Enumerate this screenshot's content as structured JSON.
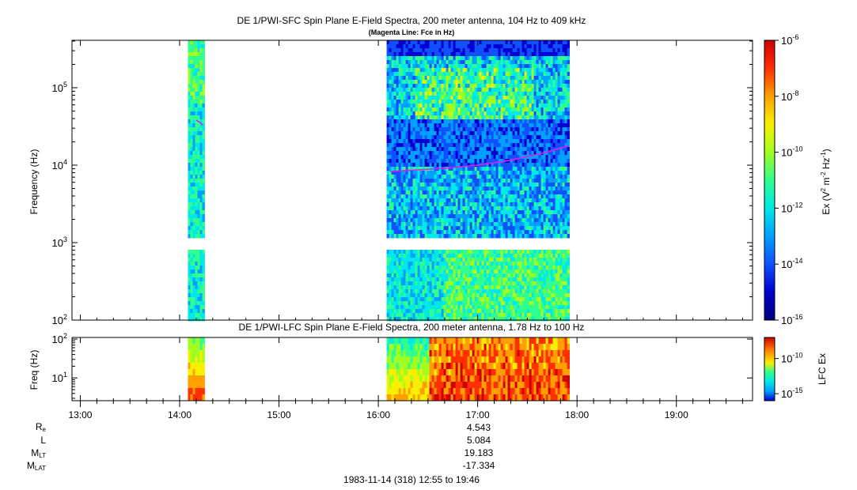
{
  "chart_data": [
    {
      "type": "heatmap",
      "title": "DE 1/PWI-SFC  Spin Plane E-Field Spectra, 200 meter antenna, 104 Hz to 409 kHz",
      "subtitle": "(Magenta Line: Fce in Hz)",
      "ylabel": "Frequency (Hz)",
      "yscale": "log",
      "ylim": [
        100,
        409000
      ],
      "yticks": [
        {
          "value": 100,
          "base": "10",
          "exp": "2"
        },
        {
          "value": 1000,
          "base": "10",
          "exp": "3"
        },
        {
          "value": 10000,
          "base": "10",
          "exp": "4"
        },
        {
          "value": 100000,
          "base": "10",
          "exp": "5"
        }
      ],
      "xlim": [
        "12:55",
        "19:46"
      ],
      "data_intervals": [
        [
          "14:05",
          "14:14"
        ],
        [
          "16:05",
          "17:55"
        ]
      ],
      "data_gap_frequency_hz": [
        900,
        1050
      ],
      "colorbar": {
        "label_prefix": "Ex (V",
        "label_sup1": "2",
        "label_mid": " m",
        "label_sup2": "-2",
        "label_hz": " Hz",
        "label_sup3": "-1",
        "label_suffix": ")",
        "scale": "log",
        "range": [
          1e-16,
          1e-06
        ],
        "ticks": [
          {
            "value": 1e-06,
            "base": "10",
            "exp": "-6"
          },
          {
            "value": 1e-08,
            "base": "10",
            "exp": "-8"
          },
          {
            "value": 1e-10,
            "base": "10",
            "exp": "-10"
          },
          {
            "value": 1e-12,
            "base": "10",
            "exp": "-12"
          },
          {
            "value": 1e-14,
            "base": "10",
            "exp": "-14"
          },
          {
            "value": 1e-16,
            "base": "10",
            "exp": "-16"
          }
        ]
      },
      "fce_line": {
        "color": "#e020e0",
        "segments": [
          {
            "x": [
              "14:10",
              "14:12",
              "14:14"
            ],
            "y": [
              38000,
              36000,
              33000
            ]
          },
          {
            "x": [
              "16:07",
              "16:20",
              "16:40",
              "17:00",
              "17:20",
              "17:40",
              "17:55"
            ],
            "y": [
              8300,
              8600,
              9100,
              10000,
              11600,
              14400,
              17800
            ]
          }
        ]
      }
    },
    {
      "type": "heatmap",
      "title": "DE 1/PWI-LFC  Spin Plane E-Field Spectra, 200 meter antenna, 1.78 Hz to 100 Hz",
      "ylabel": "Freq (Hz)",
      "yscale": "log",
      "ylim": [
        2.6,
        110
      ],
      "yticks": [
        {
          "value": 10,
          "base": "10",
          "exp": "1"
        },
        {
          "value": 100,
          "base": "10",
          "exp": "2"
        }
      ],
      "xlim": [
        "12:55",
        "19:46"
      ],
      "xticks": [
        "13:00",
        "14:00",
        "15:00",
        "16:00",
        "17:00",
        "18:00",
        "19:00"
      ],
      "data_intervals": [
        [
          "14:05",
          "14:14"
        ],
        [
          "16:05",
          "17:55"
        ]
      ],
      "colorbar": {
        "label": "LFC Ex",
        "scale": "log",
        "range": [
          1e-16,
          1e-07
        ],
        "ticks": [
          {
            "value": 1e-10,
            "base": "10",
            "exp": "-10"
          },
          {
            "value": 1e-15,
            "base": "10",
            "exp": "-15"
          }
        ]
      }
    }
  ],
  "ephemeris": {
    "re_label": "R",
    "re_sub": "e",
    "re_value": "4.543",
    "l_label": "L",
    "l_value": "5.084",
    "mlt_label": "M",
    "mlt_sub": "LT",
    "mlt_value": "19.183",
    "mlat_label": "M",
    "mlat_sub": "LAT",
    "mlat_value": "-17.334"
  },
  "date_range": "1983-11-14 (318) 12:55 to 19:46",
  "colors": {
    "colormap": [
      "#00007a",
      "#0000d0",
      "#1050ff",
      "#00a0ff",
      "#00e8e8",
      "#30ff90",
      "#a0ff20",
      "#f8f000",
      "#ffa000",
      "#ff3000",
      "#d00000"
    ],
    "fce": "#e020e0"
  }
}
